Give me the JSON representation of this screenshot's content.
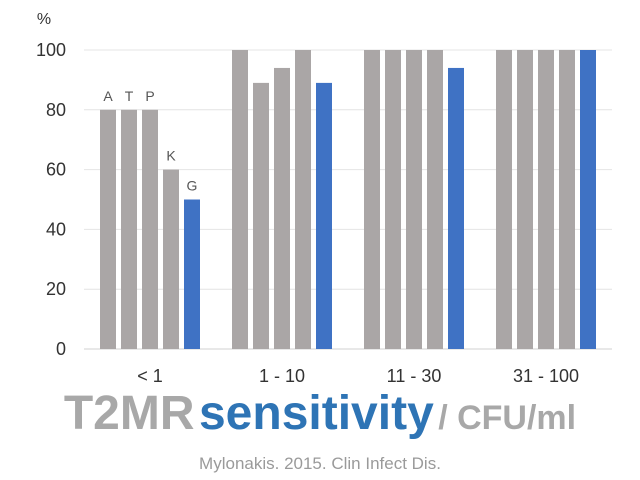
{
  "chart_data": {
    "type": "bar",
    "y_unit": "%",
    "ylim": [
      0,
      100
    ],
    "y_ticks": [
      0,
      20,
      40,
      60,
      80,
      100
    ],
    "grid": true,
    "categories": [
      "< 1",
      "1 - 10",
      "11 - 30",
      "31 - 100"
    ],
    "series": [
      {
        "name": "A",
        "values": [
          80,
          100,
          100,
          100
        ],
        "color": "#aaa6a6"
      },
      {
        "name": "T",
        "values": [
          80,
          89,
          100,
          100
        ],
        "color": "#aaa6a6"
      },
      {
        "name": "P",
        "values": [
          80,
          94,
          100,
          100
        ],
        "color": "#aaa6a6"
      },
      {
        "name": "K",
        "values": [
          60,
          100,
          100,
          100
        ],
        "color": "#aaa6a6"
      },
      {
        "name": "G",
        "values": [
          50,
          89,
          94,
          100
        ],
        "color": "#3f72c4"
      }
    ],
    "series_labels_on_group": "< 1"
  },
  "title": {
    "part1": "T2MR",
    "part2": "sensitivity",
    "part3": "/ CFU/ml"
  },
  "citation": "Mylonakis. 2015. Clin Infect Dis."
}
